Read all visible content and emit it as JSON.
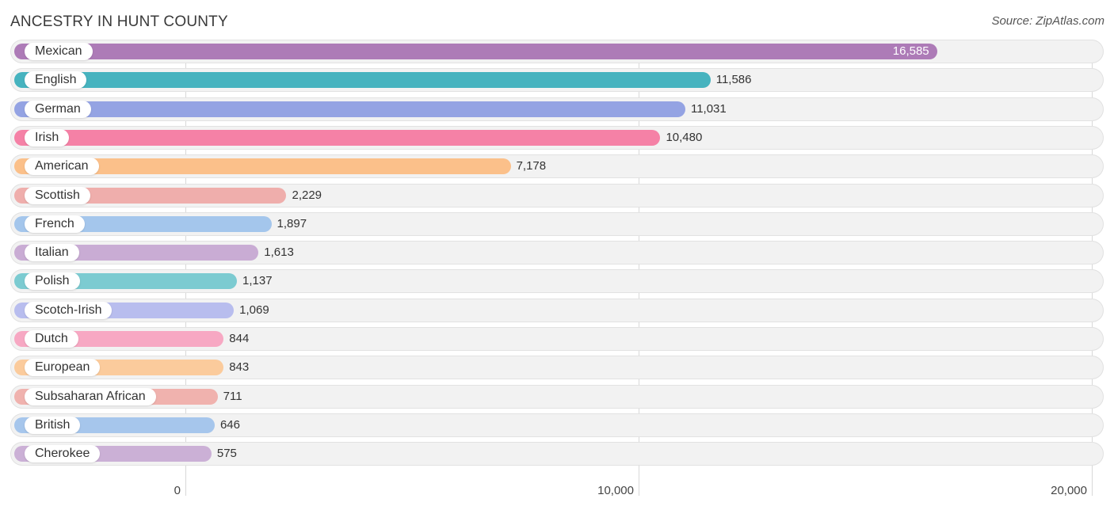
{
  "title": "ANCESTRY IN HUNT COUNTY",
  "source": "Source: ZipAtlas.com",
  "chart_data": {
    "type": "bar",
    "orientation": "horizontal",
    "title": "ANCESTRY IN HUNT COUNTY",
    "xlabel": "",
    "ylabel": "",
    "xlim": [
      0,
      20000
    ],
    "grid": true,
    "ticks": [
      {
        "value": 0,
        "label": "0"
      },
      {
        "value": 10000,
        "label": "10,000"
      },
      {
        "value": 20000,
        "label": "20,000"
      }
    ],
    "bars": [
      {
        "label": "Mexican",
        "value": 16585,
        "display": "16,585",
        "color": "#ad7bb7"
      },
      {
        "label": "English",
        "value": 11586,
        "display": "11,586",
        "color": "#46b3bf"
      },
      {
        "label": "German",
        "value": 11031,
        "display": "11,031",
        "color": "#94a3e3"
      },
      {
        "label": "Irish",
        "value": 10480,
        "display": "10,480",
        "color": "#f581a6"
      },
      {
        "label": "American",
        "value": 7178,
        "display": "7,178",
        "color": "#fbc08a"
      },
      {
        "label": "Scottish",
        "value": 2229,
        "display": "2,229",
        "color": "#efaeac"
      },
      {
        "label": "French",
        "value": 1897,
        "display": "1,897",
        "color": "#a4c6ec"
      },
      {
        "label": "Italian",
        "value": 1613,
        "display": "1,613",
        "color": "#c9acd4"
      },
      {
        "label": "Polish",
        "value": 1137,
        "display": "1,137",
        "color": "#7ccbd1"
      },
      {
        "label": "Scotch-Irish",
        "value": 1069,
        "display": "1,069",
        "color": "#b8bdee"
      },
      {
        "label": "Dutch",
        "value": 844,
        "display": "844",
        "color": "#f7a8c3"
      },
      {
        "label": "European",
        "value": 843,
        "display": "843",
        "color": "#fbcb9c"
      },
      {
        "label": "Subsaharan African",
        "value": 711,
        "display": "711",
        "color": "#f0b2ae"
      },
      {
        "label": "British",
        "value": 646,
        "display": "646",
        "color": "#a6c6ec"
      },
      {
        "label": "Cherokee",
        "value": 575,
        "display": "575",
        "color": "#cbb0d6"
      }
    ]
  }
}
